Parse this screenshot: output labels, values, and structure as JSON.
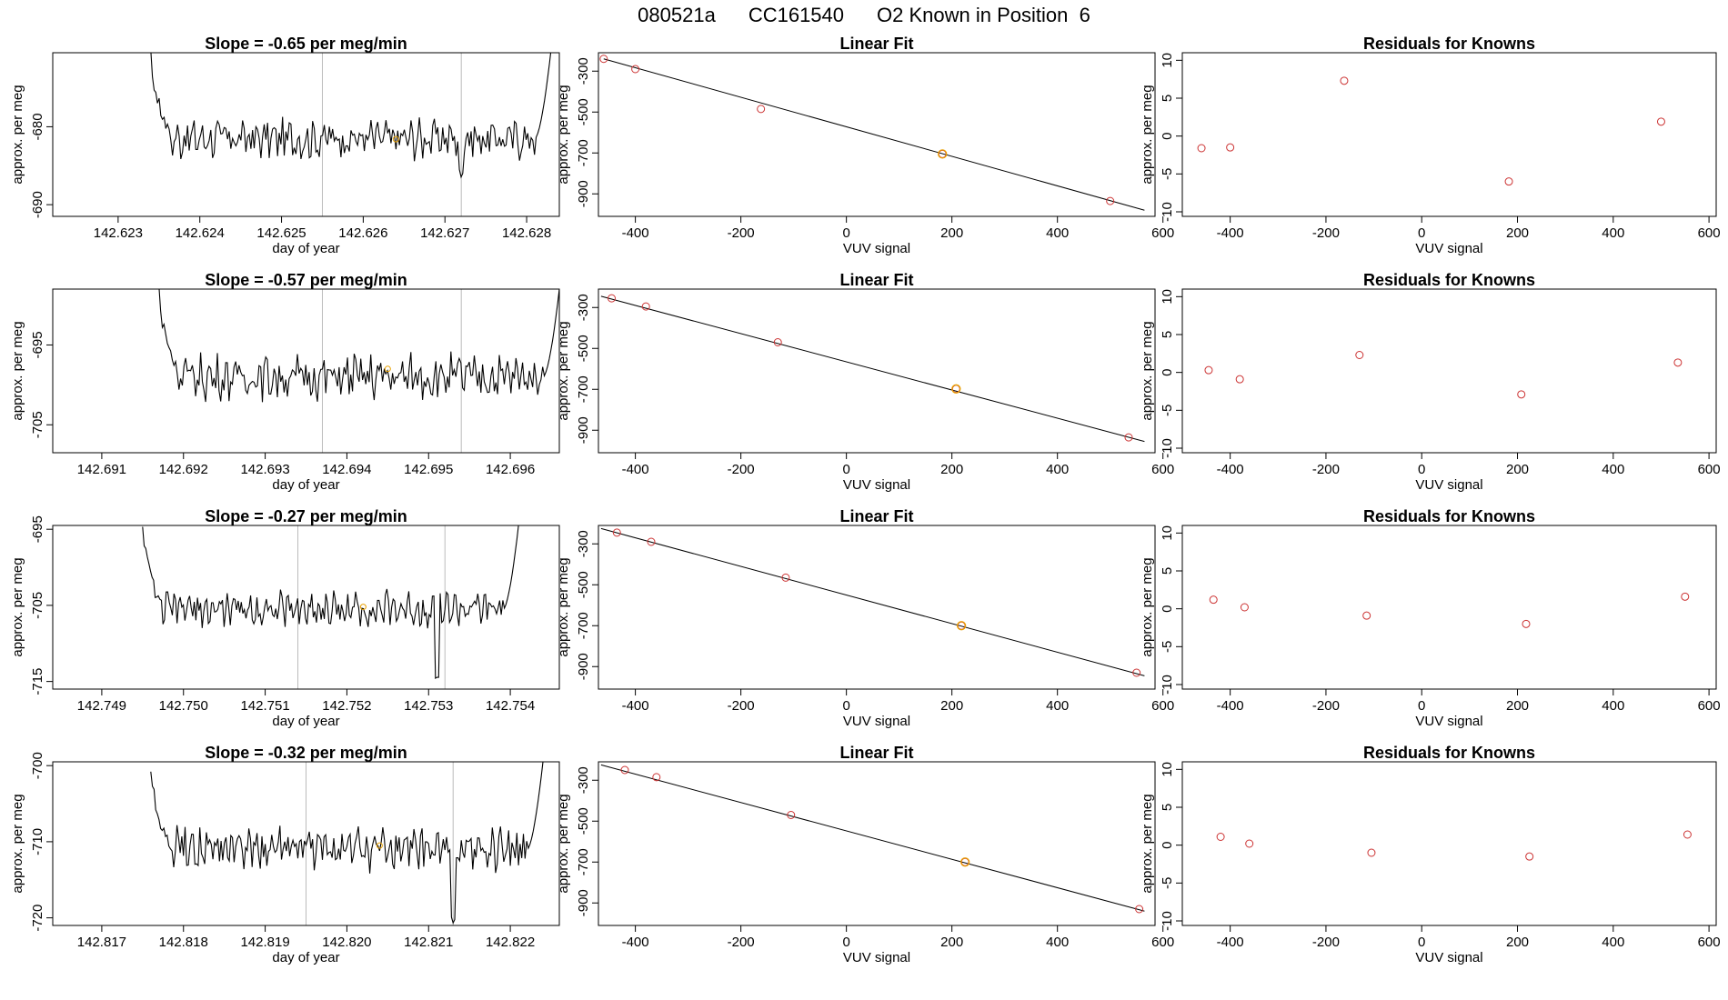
{
  "header": {
    "run_id": "080521a",
    "cylinder": "CC161540",
    "description": "O2 Known in Position  6"
  },
  "colors": {
    "line": "#000000",
    "fit_point": "#cc3333",
    "known_point": "#e8a000",
    "vline": "#bbbbbb"
  },
  "chart_data": [
    {
      "type": "line",
      "panel": "time-series",
      "title": "Slope =  -0.65  per meg/min",
      "xlabel": "day of year",
      "ylabel": "approx. per meg",
      "xlim": [
        142.6222,
        142.6284
      ],
      "ylim": [
        -691.5,
        -670.5
      ],
      "xticks": [
        142.623,
        142.624,
        142.625,
        142.626,
        142.627,
        142.628
      ],
      "xtick_labels": [
        "142.623",
        "142.624",
        "142.625",
        "142.626",
        "142.627",
        "142.628"
      ],
      "yticks": [
        -690,
        -680
      ],
      "ytick_labels": [
        "-690",
        "-680"
      ],
      "series_start": 142.6234,
      "series_end": 142.6283,
      "base": -681.5,
      "amplitude": 2.0,
      "edge_left": -671,
      "edge_right": -670,
      "dip": {
        "x": 142.6272,
        "value": -686.5
      },
      "vlines": [
        142.6255,
        142.6272
      ],
      "marker": {
        "x": 142.6264,
        "y": -681.6
      }
    },
    {
      "type": "scatter",
      "panel": "linear-fit",
      "title": "Linear Fit",
      "xlabel": "VUV signal",
      "ylabel": "approx. per meg",
      "xlim": [
        -470,
        585
      ],
      "ylim": [
        -1010,
        -210
      ],
      "xticks": [
        -400,
        -200,
        0,
        200,
        400,
        600
      ],
      "xtick_labels": [
        "-400",
        "-200",
        "0",
        "200",
        "400",
        "600"
      ],
      "yticks": [
        -900,
        -700,
        -500,
        -300
      ],
      "ytick_labels": [
        "-900",
        "-700",
        "-500",
        "-300"
      ],
      "x": [
        -460,
        -400,
        -162,
        182,
        500
      ],
      "y": [
        -240,
        -290,
        -485,
        -705,
        -935
      ],
      "fit_line": {
        "x": [
          -460,
          565
        ],
        "y": [
          -240,
          -980
        ]
      },
      "known_point": {
        "x": 182,
        "y": -705
      }
    },
    {
      "type": "scatter",
      "panel": "residuals",
      "title": "Residuals for Knowns",
      "xlabel": "VUV signal",
      "ylabel": "approx. per meg",
      "xlim": [
        -500,
        615
      ],
      "ylim": [
        -10.6,
        11
      ],
      "xticks": [
        -400,
        -200,
        0,
        200,
        400,
        600
      ],
      "xtick_labels": [
        "-400",
        "-200",
        "0",
        "200",
        "400",
        "600"
      ],
      "yticks": [
        -10,
        -5,
        0,
        5,
        10
      ],
      "ytick_labels": [
        "-10",
        "-5",
        "0",
        "5",
        "10"
      ],
      "x": [
        -460,
        -400,
        -162,
        182,
        500
      ],
      "y": [
        -1.6,
        -1.5,
        7.3,
        -6.0,
        1.9
      ]
    },
    {
      "type": "line",
      "panel": "time-series",
      "title": "Slope =  -0.57  per meg/min",
      "xlabel": "day of year",
      "ylabel": "approx. per meg",
      "xlim": [
        142.6904,
        142.6966
      ],
      "ylim": [
        -708.5,
        -688
      ],
      "xticks": [
        142.691,
        142.692,
        142.693,
        142.694,
        142.695,
        142.696
      ],
      "xtick_labels": [
        "142.691",
        "142.692",
        "142.693",
        "142.694",
        "142.695",
        "142.696"
      ],
      "yticks": [
        -705,
        -695
      ],
      "ytick_labels": [
        "-705",
        "-695"
      ],
      "series_start": 142.6917,
      "series_end": 142.6966,
      "base": -699.0,
      "amplitude": 2.2,
      "edge_left": -688,
      "edge_right": -688,
      "dip": null,
      "vlines": [
        142.6937,
        142.6954
      ],
      "marker": {
        "x": 142.6945,
        "y": -698.0
      }
    },
    {
      "type": "scatter",
      "panel": "linear-fit",
      "title": "Linear Fit",
      "xlabel": "VUV signal",
      "ylabel": "approx. per meg",
      "xlim": [
        -470,
        585
      ],
      "ylim": [
        -1010,
        -210
      ],
      "xticks": [
        -400,
        -200,
        0,
        200,
        400,
        600
      ],
      "xtick_labels": [
        "-400",
        "-200",
        "0",
        "200",
        "400",
        "600"
      ],
      "yticks": [
        -900,
        -700,
        -500,
        -300
      ],
      "ytick_labels": [
        "-900",
        "-700",
        "-500",
        "-300"
      ],
      "x": [
        -445,
        -380,
        -130,
        208,
        535
      ],
      "y": [
        -255,
        -295,
        -470,
        -698,
        -935
      ],
      "fit_line": {
        "x": [
          -465,
          565
        ],
        "y": [
          -245,
          -955
        ]
      },
      "known_point": {
        "x": 208,
        "y": -698
      }
    },
    {
      "type": "scatter",
      "panel": "residuals",
      "title": "Residuals for Knowns",
      "xlabel": "VUV signal",
      "ylabel": "approx. per meg",
      "xlim": [
        -500,
        615
      ],
      "ylim": [
        -10.6,
        11
      ],
      "xticks": [
        -400,
        -200,
        0,
        200,
        400,
        600
      ],
      "xtick_labels": [
        "-400",
        "-200",
        "0",
        "200",
        "400",
        "600"
      ],
      "yticks": [
        -10,
        -5,
        0,
        5,
        10
      ],
      "ytick_labels": [
        "-10",
        "-5",
        "0",
        "5",
        "10"
      ],
      "x": [
        -445,
        -380,
        -130,
        208,
        535
      ],
      "y": [
        0.3,
        -0.9,
        2.3,
        -2.9,
        1.3
      ]
    },
    {
      "type": "line",
      "panel": "time-series",
      "title": "Slope =  -0.27  per meg/min",
      "xlabel": "day of year",
      "ylabel": "approx. per meg",
      "xlim": [
        142.7484,
        142.7546
      ],
      "ylim": [
        -716,
        -694.5
      ],
      "xticks": [
        142.749,
        142.75,
        142.751,
        142.752,
        142.753,
        142.754
      ],
      "xtick_labels": [
        "142.749",
        "142.750",
        "142.751",
        "142.752",
        "142.753",
        "142.754"
      ],
      "yticks": [
        -715,
        -705,
        -695
      ],
      "ytick_labels": [
        "-715",
        "-705",
        "-695"
      ],
      "series_start": 142.7495,
      "series_end": 142.7541,
      "base": -705.5,
      "amplitude": 1.8,
      "edge_left": -694.5,
      "edge_right": -694.5,
      "dip": {
        "x": 142.7531,
        "value": -715.0
      },
      "vlines": [
        142.7514,
        142.7532
      ],
      "marker": {
        "x": 142.7522,
        "y": -705.2
      }
    },
    {
      "type": "scatter",
      "panel": "linear-fit",
      "title": "Linear Fit",
      "xlabel": "VUV signal",
      "ylabel": "approx. per meg",
      "xlim": [
        -470,
        585
      ],
      "ylim": [
        -1010,
        -210
      ],
      "xticks": [
        -400,
        -200,
        0,
        200,
        400,
        600
      ],
      "xtick_labels": [
        "-400",
        "-200",
        "0",
        "200",
        "400",
        "600"
      ],
      "yticks": [
        -900,
        -700,
        -500,
        -300
      ],
      "ytick_labels": [
        "-900",
        "-700",
        "-500",
        "-300"
      ],
      "x": [
        -435,
        -370,
        -115,
        218,
        550
      ],
      "y": [
        -245,
        -290,
        -465,
        -700,
        -930
      ],
      "fit_line": {
        "x": [
          -465,
          565
        ],
        "y": [
          -225,
          -945
        ]
      },
      "known_point": {
        "x": 218,
        "y": -700
      }
    },
    {
      "type": "scatter",
      "panel": "residuals",
      "title": "Residuals for Knowns",
      "xlabel": "VUV signal",
      "ylabel": "approx. per meg",
      "xlim": [
        -500,
        615
      ],
      "ylim": [
        -10.6,
        11
      ],
      "xticks": [
        -400,
        -200,
        0,
        200,
        400,
        600
      ],
      "xtick_labels": [
        "-400",
        "-200",
        "0",
        "200",
        "400",
        "600"
      ],
      "yticks": [
        -10,
        -5,
        0,
        5,
        10
      ],
      "ytick_labels": [
        "-10",
        "-5",
        "0",
        "5",
        "10"
      ],
      "x": [
        -435,
        -370,
        -115,
        218,
        550
      ],
      "y": [
        1.2,
        0.2,
        -0.9,
        -2.0,
        1.6
      ]
    },
    {
      "type": "line",
      "panel": "time-series",
      "title": "Slope =  -0.32  per meg/min",
      "xlabel": "day of year",
      "ylabel": "approx. per meg",
      "xlim": [
        142.8164,
        142.8226
      ],
      "ylim": [
        -721,
        -699.5
      ],
      "xticks": [
        142.817,
        142.818,
        142.819,
        142.82,
        142.821,
        142.822
      ],
      "xtick_labels": [
        "142.817",
        "142.818",
        "142.819",
        "142.820",
        "142.821",
        "142.822"
      ],
      "yticks": [
        -720,
        -710,
        -700
      ],
      "ytick_labels": [
        "-720",
        "-710",
        "-700"
      ],
      "series_start": 142.8176,
      "series_end": 142.8224,
      "base": -711.0,
      "amplitude": 2.2,
      "edge_left": -700,
      "edge_right": -699.5,
      "dip": {
        "x": 142.8213,
        "value": -721.0
      },
      "vlines": [
        142.8195,
        142.8213
      ],
      "marker": {
        "x": 142.8204,
        "y": -710.5
      }
    },
    {
      "type": "scatter",
      "panel": "linear-fit",
      "title": "Linear Fit",
      "xlabel": "VUV signal",
      "ylabel": "approx. per meg",
      "xlim": [
        -470,
        585
      ],
      "ylim": [
        -1010,
        -210
      ],
      "xticks": [
        -400,
        -200,
        0,
        200,
        400,
        600
      ],
      "xtick_labels": [
        "-400",
        "-200",
        "0",
        "200",
        "400",
        "600"
      ],
      "yticks": [
        -900,
        -700,
        -500,
        -300
      ],
      "ytick_labels": [
        "-900",
        "-700",
        "-500",
        "-300"
      ],
      "x": [
        -420,
        -360,
        -105,
        225,
        555
      ],
      "y": [
        -250,
        -285,
        -470,
        -700,
        -930
      ],
      "fit_line": {
        "x": [
          -465,
          565
        ],
        "y": [
          -225,
          -940
        ]
      },
      "known_point": {
        "x": 225,
        "y": -700
      }
    },
    {
      "type": "scatter",
      "panel": "residuals",
      "title": "Residuals for Knowns",
      "xlabel": "VUV signal",
      "ylabel": "approx. per meg",
      "xlim": [
        -500,
        615
      ],
      "ylim": [
        -10.6,
        11
      ],
      "xticks": [
        -400,
        -200,
        0,
        200,
        400,
        600
      ],
      "xtick_labels": [
        "-400",
        "-200",
        "0",
        "200",
        "400",
        "600"
      ],
      "yticks": [
        -10,
        -5,
        0,
        5,
        10
      ],
      "ytick_labels": [
        "-10",
        "-5",
        "0",
        "5",
        "10"
      ],
      "x": [
        -420,
        -360,
        -105,
        225,
        555
      ],
      "y": [
        1.1,
        0.2,
        -1.0,
        -1.5,
        1.4
      ]
    }
  ]
}
